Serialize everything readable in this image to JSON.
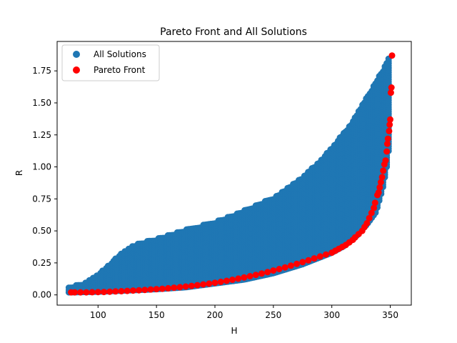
{
  "chart_data": {
    "type": "scatter",
    "title": "Pareto Front and All Solutions",
    "xlabel": "H",
    "ylabel": "R",
    "xlim": [
      65,
      368
    ],
    "ylim": [
      -0.08,
      1.98
    ],
    "xticks": [
      100,
      150,
      200,
      250,
      300,
      350
    ],
    "xtick_labels": [
      "100",
      "150",
      "200",
      "250",
      "300",
      "350"
    ],
    "yticks": [
      0.0,
      0.25,
      0.5,
      0.75,
      1.0,
      1.25,
      1.5,
      1.75
    ],
    "ytick_labels": [
      "0.00",
      "0.25",
      "0.50",
      "0.75",
      "1.00",
      "1.25",
      "1.50",
      "1.75"
    ],
    "grid": false,
    "legend_position": "top-left",
    "series": [
      {
        "name": "All Solutions",
        "color": "#1f77b4",
        "region": {
          "upper_boundary": [
            [
              75,
              0.06
            ],
            [
              90,
              0.1
            ],
            [
              100,
              0.16
            ],
            [
              110,
              0.24
            ],
            [
              120,
              0.33
            ],
            [
              130,
              0.39
            ],
            [
              150,
              0.44
            ],
            [
              175,
              0.51
            ],
            [
              200,
              0.57
            ],
            [
              225,
              0.66
            ],
            [
              250,
              0.76
            ],
            [
              275,
              0.92
            ],
            [
              290,
              1.05
            ],
            [
              300,
              1.15
            ],
            [
              315,
              1.32
            ],
            [
              325,
              1.47
            ],
            [
              335,
              1.62
            ],
            [
              345,
              1.78
            ],
            [
              350,
              1.89
            ]
          ],
          "lower_boundary": [
            [
              75,
              0.02
            ],
            [
              100,
              0.025
            ],
            [
              125,
              0.035
            ],
            [
              150,
              0.045
            ],
            [
              175,
              0.06
            ],
            [
              200,
              0.09
            ],
            [
              225,
              0.12
            ],
            [
              250,
              0.17
            ],
            [
              275,
              0.24
            ],
            [
              300,
              0.33
            ],
            [
              310,
              0.38
            ],
            [
              320,
              0.45
            ],
            [
              330,
              0.55
            ],
            [
              338,
              0.65
            ],
            [
              344,
              0.85
            ],
            [
              348,
              1.05
            ],
            [
              350,
              1.3
            ],
            [
              351,
              1.6
            ],
            [
              351,
              1.89
            ]
          ]
        }
      },
      {
        "name": "Pareto Front",
        "color": "#ff0000",
        "points": [
          [
            77,
            0.02
          ],
          [
            80,
            0.02
          ],
          [
            85,
            0.02
          ],
          [
            90,
            0.02
          ],
          [
            95,
            0.021
          ],
          [
            100,
            0.022
          ],
          [
            105,
            0.023
          ],
          [
            110,
            0.025
          ],
          [
            115,
            0.027
          ],
          [
            120,
            0.029
          ],
          [
            125,
            0.031
          ],
          [
            130,
            0.034
          ],
          [
            135,
            0.036
          ],
          [
            140,
            0.039
          ],
          [
            145,
            0.042
          ],
          [
            150,
            0.045
          ],
          [
            155,
            0.048
          ],
          [
            160,
            0.052
          ],
          [
            165,
            0.056
          ],
          [
            170,
            0.06
          ],
          [
            175,
            0.065
          ],
          [
            180,
            0.07
          ],
          [
            185,
            0.076
          ],
          [
            190,
            0.082
          ],
          [
            195,
            0.088
          ],
          [
            200,
            0.095
          ],
          [
            205,
            0.102
          ],
          [
            210,
            0.11
          ],
          [
            215,
            0.118
          ],
          [
            220,
            0.127
          ],
          [
            225,
            0.136
          ],
          [
            230,
            0.146
          ],
          [
            235,
            0.156
          ],
          [
            240,
            0.167
          ],
          [
            245,
            0.178
          ],
          [
            250,
            0.19
          ],
          [
            255,
            0.202
          ],
          [
            260,
            0.215
          ],
          [
            265,
            0.228
          ],
          [
            270,
            0.242
          ],
          [
            275,
            0.256
          ],
          [
            280,
            0.27
          ],
          [
            285,
            0.285
          ],
          [
            290,
            0.3
          ],
          [
            295,
            0.315
          ],
          [
            300,
            0.33
          ],
          [
            303,
            0.345
          ],
          [
            306,
            0.36
          ],
          [
            309,
            0.375
          ],
          [
            312,
            0.39
          ],
          [
            315,
            0.41
          ],
          [
            318,
            0.43
          ],
          [
            320,
            0.45
          ],
          [
            323,
            0.475
          ],
          [
            326,
            0.5
          ],
          [
            328,
            0.53
          ],
          [
            330,
            0.56
          ],
          [
            332,
            0.6
          ],
          [
            334,
            0.64
          ],
          [
            336,
            0.68
          ],
          [
            337,
            0.72
          ],
          [
            339,
            0.78
          ],
          [
            340,
            0.8
          ],
          [
            341,
            0.84
          ],
          [
            342,
            0.88
          ],
          [
            343,
            0.92
          ],
          [
            344,
            0.97
          ],
          [
            345,
            1.02
          ],
          [
            346,
            1.05
          ],
          [
            347,
            1.12
          ],
          [
            347.5,
            1.18
          ],
          [
            348,
            1.22
          ],
          [
            349,
            1.28
          ],
          [
            349.5,
            1.33
          ],
          [
            350,
            1.37
          ],
          [
            350.5,
            1.58
          ],
          [
            351,
            1.62
          ],
          [
            351.5,
            1.87
          ]
        ]
      }
    ]
  }
}
